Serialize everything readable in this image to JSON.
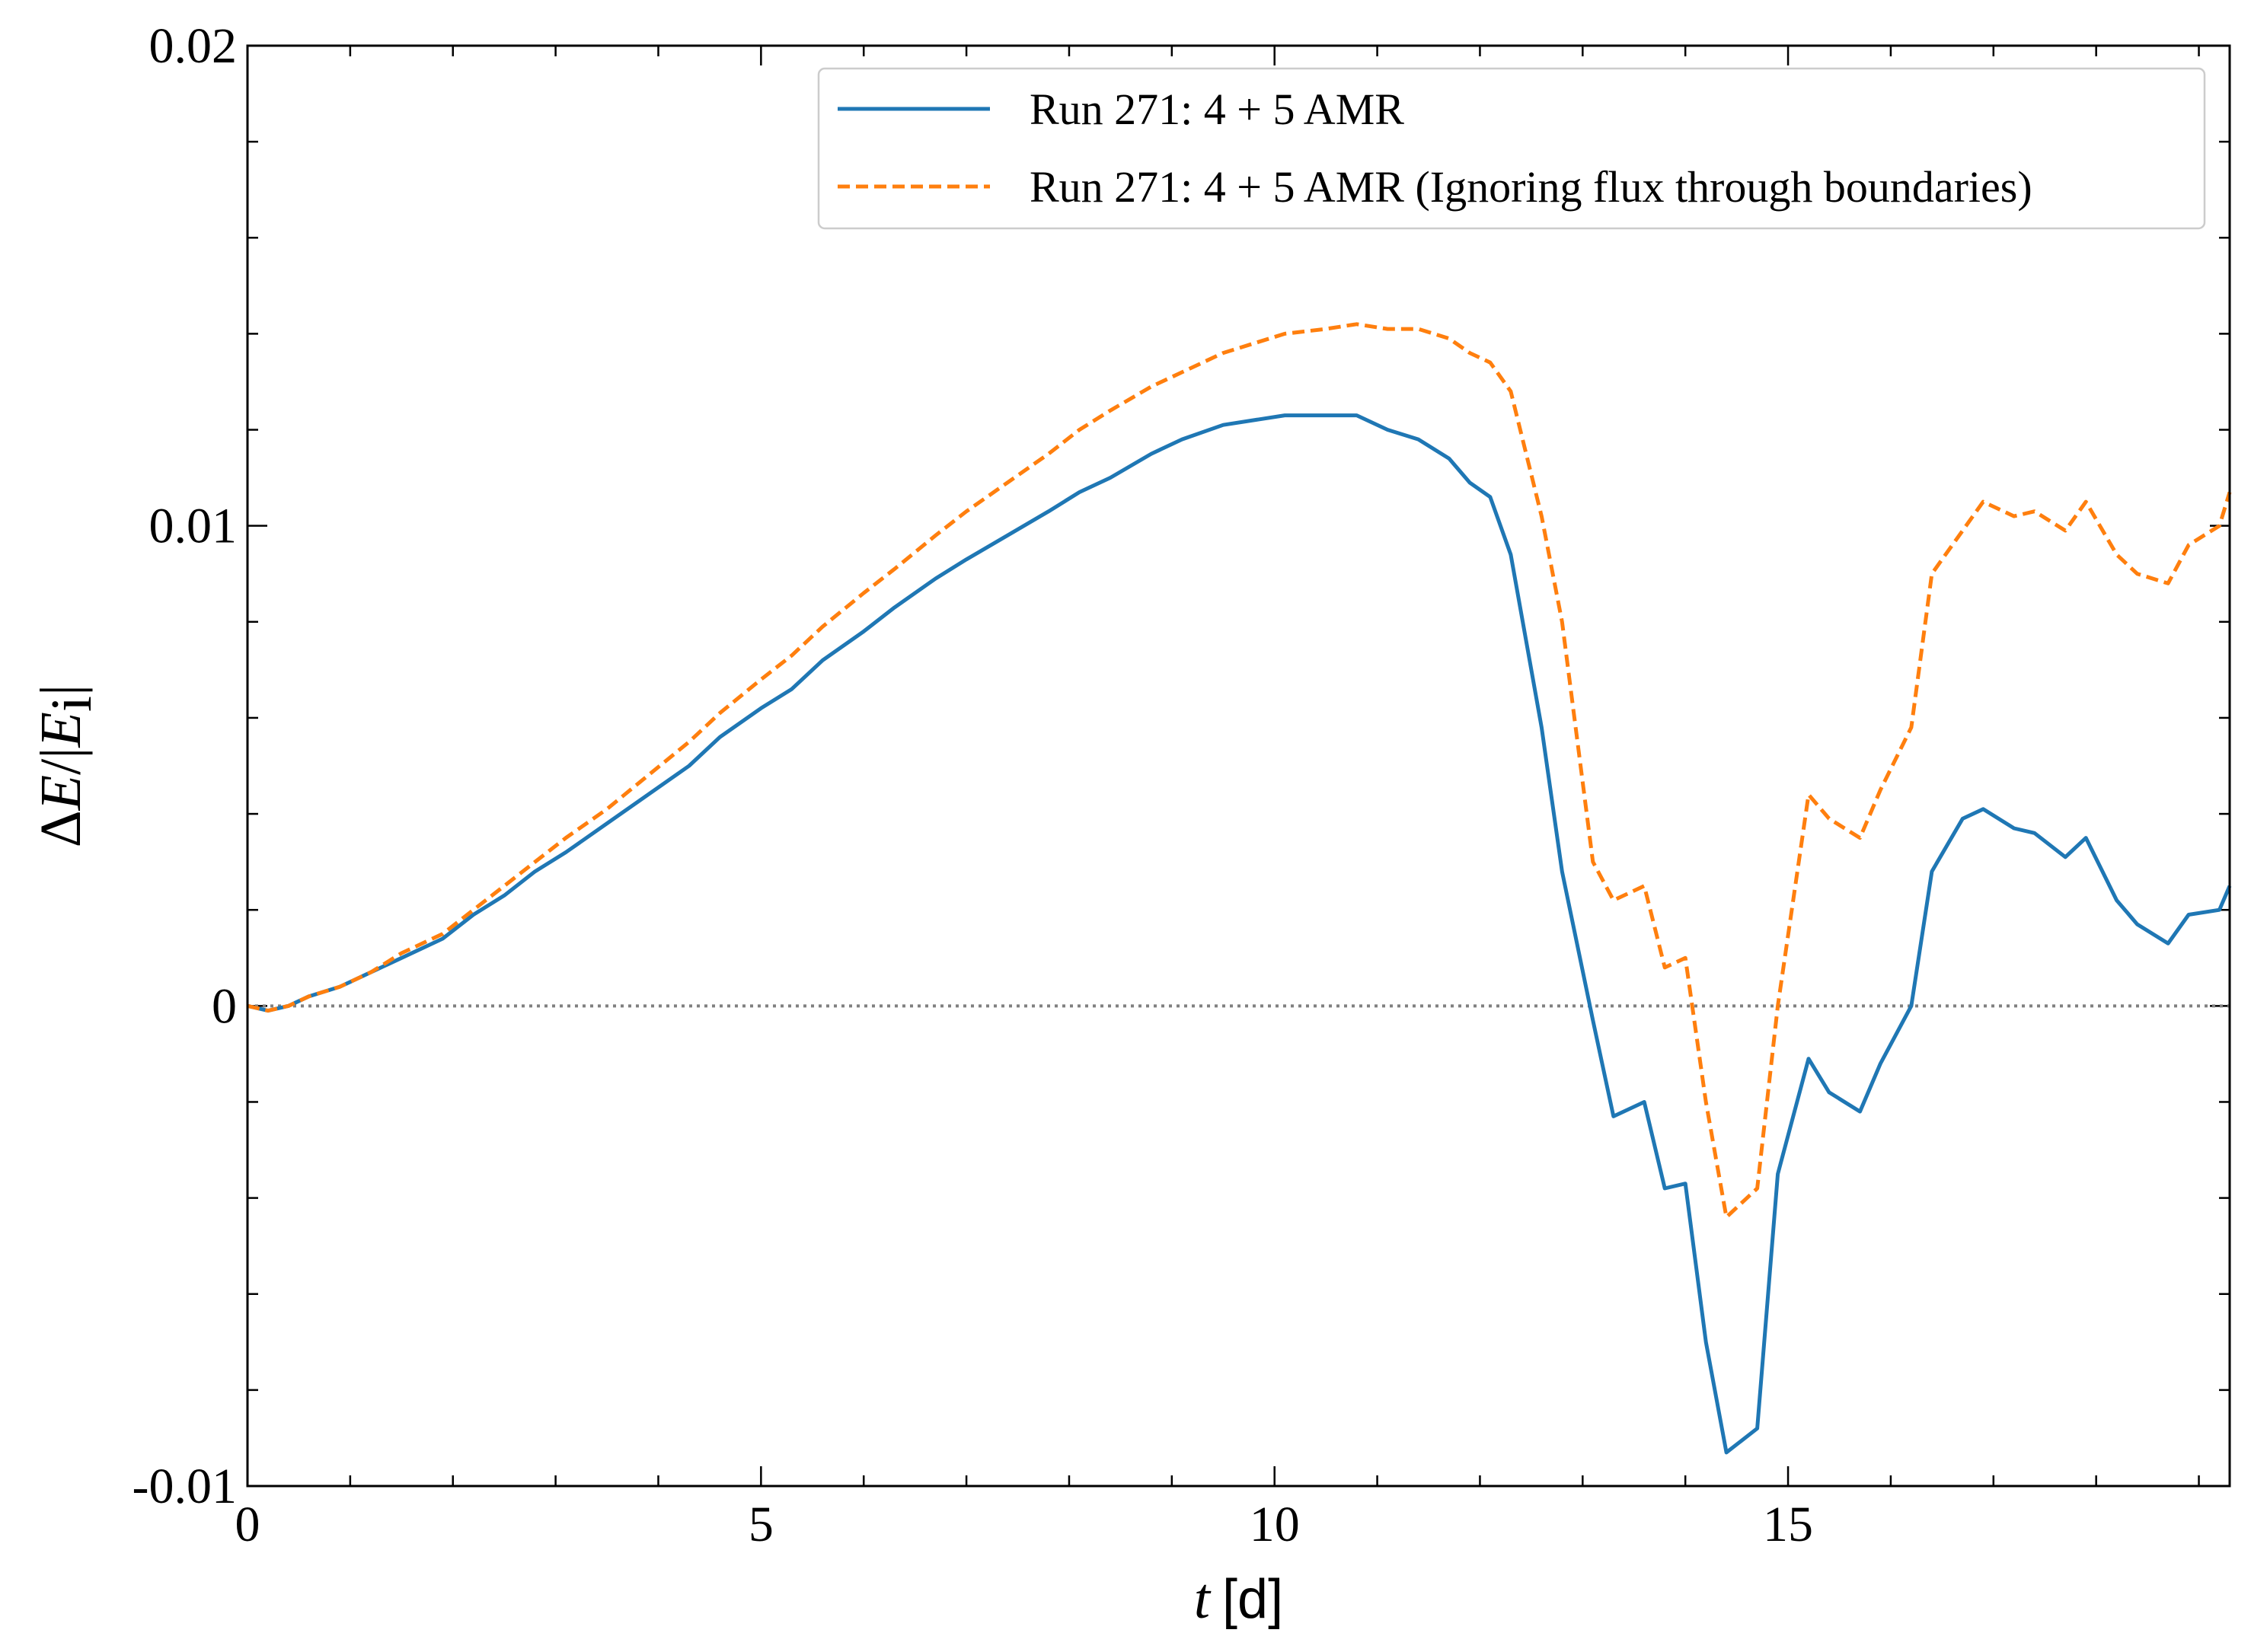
{
  "chart_data": {
    "type": "line",
    "title": "",
    "xlabel": "t [d]",
    "xlabel_parts": {
      "symbol": "t",
      "unit": "[d]"
    },
    "ylabel": "ΔE/|Ei|",
    "ylabel_parts": {
      "prefix": "Δ",
      "symbol": "E",
      "sep": "/|",
      "sub_symbol": "E",
      "sub": "i",
      "suffix": "|"
    },
    "xlim": [
      0,
      19.3
    ],
    "ylim": [
      -0.01,
      0.02
    ],
    "x_ticks": [
      0,
      5,
      10,
      15
    ],
    "x_tick_labels": [
      "0",
      "5",
      "10",
      "15"
    ],
    "x_minor_step": 1,
    "y_ticks": [
      -0.01,
      0,
      0.01,
      0.02
    ],
    "y_tick_labels": [
      "-0.01",
      "0",
      "0.01",
      "0.02"
    ],
    "y_minor_step": 0.002,
    "grid": false,
    "legend_position": "top-right",
    "reference_line": {
      "y": 0,
      "style": "dotted",
      "color": "#808080"
    },
    "series": [
      {
        "name": "Run 271: 4 + 5 AMR",
        "color": "#1f77b4",
        "style": "solid",
        "x": [
          0,
          0.2,
          0.4,
          0.6,
          0.9,
          1.2,
          1.5,
          1.9,
          2.2,
          2.5,
          2.8,
          3.1,
          3.5,
          3.9,
          4.3,
          4.6,
          5.0,
          5.3,
          5.6,
          6.0,
          6.3,
          6.7,
          7.0,
          7.4,
          7.8,
          8.1,
          8.4,
          8.8,
          9.1,
          9.5,
          9.8,
          10.1,
          10.5,
          10.8,
          11.1,
          11.4,
          11.7,
          11.9,
          12.1,
          12.3,
          12.6,
          12.8,
          13.1,
          13.3,
          13.6,
          13.8,
          14.0,
          14.2,
          14.4,
          14.7,
          14.9,
          15.2,
          15.4,
          15.7,
          15.9,
          16.2,
          16.4,
          16.7,
          16.9,
          17.2,
          17.4,
          17.7,
          17.9,
          18.2,
          18.4,
          18.7,
          18.9,
          19.2,
          19.3
        ],
        "y": [
          0.0,
          -0.0001,
          0.0,
          0.0002,
          0.0004,
          0.0007,
          0.001,
          0.0014,
          0.0019,
          0.0023,
          0.0028,
          0.0032,
          0.0038,
          0.0044,
          0.005,
          0.0056,
          0.0062,
          0.0066,
          0.0072,
          0.0078,
          0.0083,
          0.0089,
          0.0093,
          0.0098,
          0.0103,
          0.0107,
          0.011,
          0.0115,
          0.0118,
          0.0121,
          0.0122,
          0.0123,
          0.0123,
          0.0123,
          0.012,
          0.0118,
          0.0114,
          0.0109,
          0.0106,
          0.0094,
          0.0058,
          0.0028,
          -0.0003,
          -0.0023,
          -0.002,
          -0.0038,
          -0.0037,
          -0.007,
          -0.0093,
          -0.0088,
          -0.0035,
          -0.0011,
          -0.0018,
          -0.0022,
          -0.0012,
          0.0,
          0.0028,
          0.0039,
          0.0041,
          0.0037,
          0.0036,
          0.0031,
          0.0035,
          0.0022,
          0.0017,
          0.0013,
          0.0019,
          0.002,
          0.0025
        ]
      },
      {
        "name": "Run 271: 4 + 5 AMR (Ignoring flux through boundaries)",
        "color": "#ff7f0e",
        "style": "dashed",
        "x": [
          0,
          0.2,
          0.4,
          0.6,
          0.9,
          1.2,
          1.5,
          1.9,
          2.2,
          2.5,
          2.8,
          3.1,
          3.5,
          3.9,
          4.3,
          4.6,
          5.0,
          5.3,
          5.6,
          6.0,
          6.3,
          6.7,
          7.0,
          7.4,
          7.8,
          8.1,
          8.4,
          8.8,
          9.1,
          9.5,
          9.8,
          10.1,
          10.5,
          10.8,
          11.1,
          11.4,
          11.7,
          11.9,
          12.1,
          12.3,
          12.6,
          12.8,
          13.1,
          13.3,
          13.6,
          13.8,
          14.0,
          14.2,
          14.4,
          14.7,
          14.9,
          15.2,
          15.4,
          15.7,
          15.9,
          16.2,
          16.4,
          16.7,
          16.9,
          17.2,
          17.4,
          17.7,
          17.9,
          18.2,
          18.4,
          18.7,
          18.9,
          19.2,
          19.3
        ],
        "y": [
          0.0,
          -0.0001,
          0.0,
          0.0002,
          0.0004,
          0.0007,
          0.0011,
          0.0015,
          0.002,
          0.0025,
          0.003,
          0.0035,
          0.0041,
          0.0048,
          0.0055,
          0.0061,
          0.0068,
          0.0073,
          0.0079,
          0.0086,
          0.0091,
          0.0098,
          0.0103,
          0.0109,
          0.0115,
          0.012,
          0.0124,
          0.0129,
          0.0132,
          0.0136,
          0.0138,
          0.014,
          0.0141,
          0.0142,
          0.0141,
          0.0141,
          0.0139,
          0.0136,
          0.0134,
          0.0128,
          0.0102,
          0.008,
          0.003,
          0.0022,
          0.0025,
          0.0008,
          0.001,
          -0.002,
          -0.0044,
          -0.0038,
          0.0,
          0.0044,
          0.0039,
          0.0035,
          0.0045,
          0.0058,
          0.009,
          0.0099,
          0.0105,
          0.0102,
          0.0103,
          0.0099,
          0.0105,
          0.0094,
          0.009,
          0.0088,
          0.0096,
          0.01,
          0.0107
        ]
      }
    ]
  }
}
